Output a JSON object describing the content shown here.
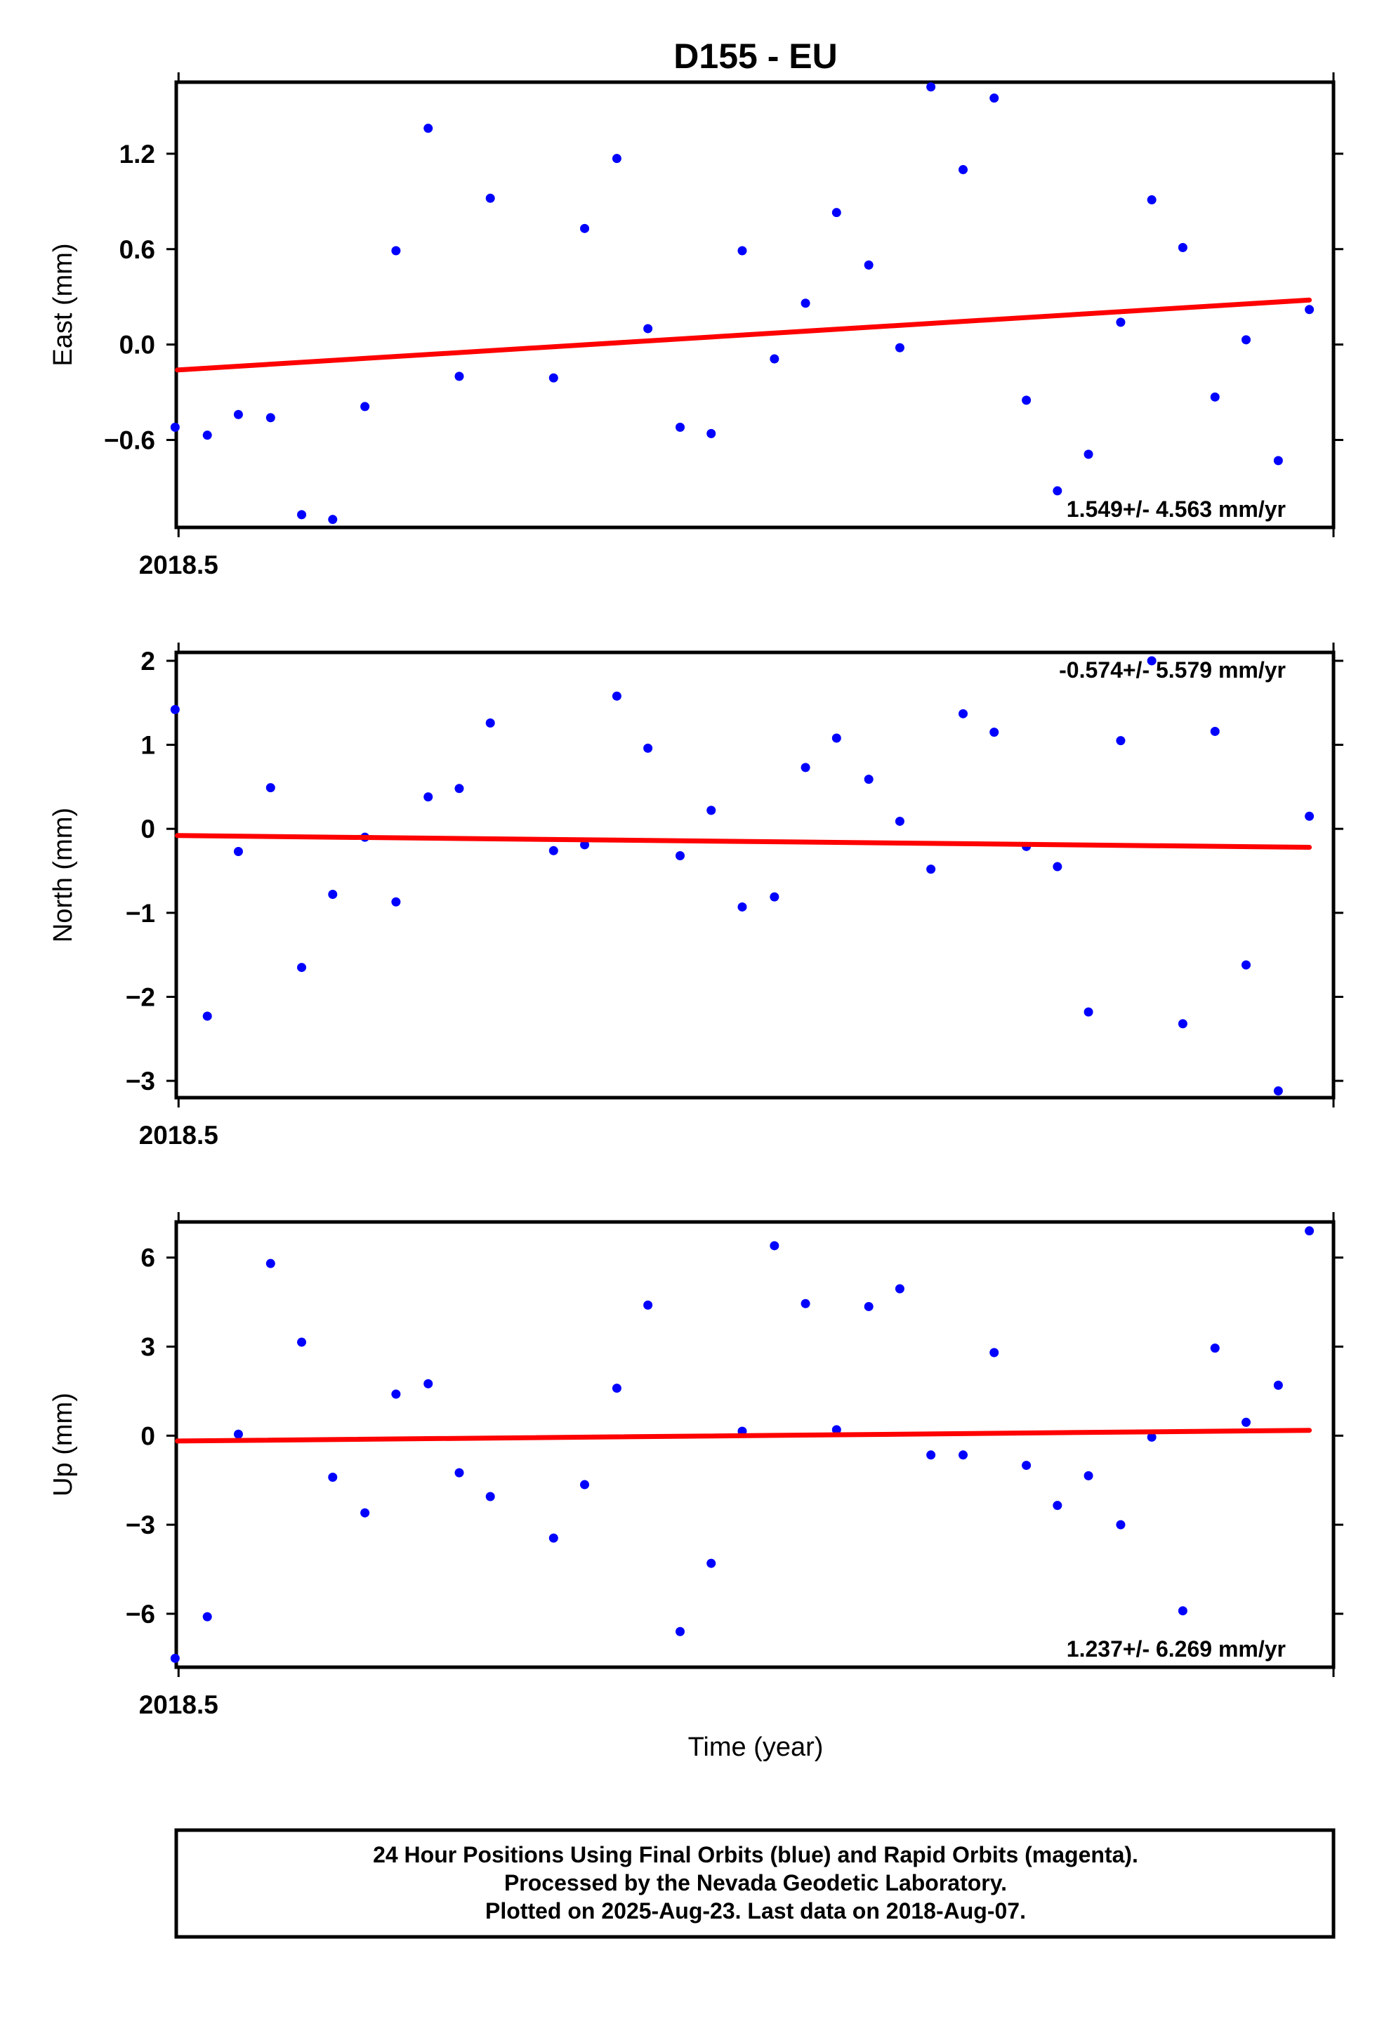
{
  "title": "D155 - EU",
  "colors": {
    "final_orbits": "#0000ff",
    "fit_line": "#ff0000",
    "frame": "#000000"
  },
  "chart_data": [
    {
      "type": "scatter",
      "name": "east",
      "ylabel": "East (mm)",
      "ylim": [
        -1.15,
        1.65
      ],
      "yticks": [
        -0.6,
        0.0,
        0.6,
        1.2
      ],
      "ytick_labels": [
        "−0.6",
        "0.0",
        "0.6",
        "1.2"
      ],
      "xlim": [
        2018.4998,
        2018.6004
      ],
      "xticks": [
        2018.5
      ],
      "xtick_labels": [
        "2018.5"
      ],
      "rate_text": "1.549+/- 4.563 mm/yr",
      "rate_position": "bottom-right",
      "x": [
        2018.4997,
        2018.5025,
        2018.5052,
        2018.508,
        2018.5107,
        2018.5134,
        2018.5162,
        2018.5189,
        2018.5217,
        2018.5244,
        2018.5271,
        2018.5326,
        2018.5353,
        2018.5381,
        2018.5408,
        2018.5436,
        2018.5463,
        2018.549,
        2018.5518,
        2018.5545,
        2018.5572,
        2018.56,
        2018.5627,
        2018.5654,
        2018.5682,
        2018.5709,
        2018.5737,
        2018.5764,
        2018.5791,
        2018.5819,
        2018.5846,
        2018.5873,
        2018.5901,
        2018.5928,
        2018.5956,
        2018.5983
      ],
      "y": [
        -0.52,
        -0.57,
        -0.44,
        -0.46,
        -1.07,
        -1.1,
        -0.39,
        0.59,
        1.36,
        -0.2,
        0.92,
        -0.21,
        0.73,
        1.17,
        0.1,
        -0.52,
        -0.56,
        0.59,
        -0.09,
        0.26,
        0.83,
        0.5,
        -0.02,
        1.62,
        1.1,
        1.55,
        -0.35,
        -0.92,
        -0.69,
        0.14,
        0.91,
        0.61,
        -0.33,
        0.03,
        -0.73,
        0.22
      ],
      "trend": {
        "start": [
          2018.4999,
          -0.16
        ],
        "end": [
          2018.5983,
          0.28
        ]
      }
    },
    {
      "type": "scatter",
      "name": "north",
      "ylabel": "North (mm)",
      "ylim": [
        -3.2,
        2.1
      ],
      "yticks": [
        -3,
        -2,
        -1,
        0,
        1,
        2
      ],
      "ytick_labels": [
        "−3",
        "−2",
        "−1",
        "0",
        "1",
        "2"
      ],
      "xlim": [
        2018.4998,
        2018.6004
      ],
      "xticks": [
        2018.5
      ],
      "xtick_labels": [
        "2018.5"
      ],
      "rate_text": "-0.574+/- 5.579 mm/yr",
      "rate_position": "top-right",
      "x": [
        2018.4997,
        2018.5025,
        2018.5052,
        2018.508,
        2018.5107,
        2018.5134,
        2018.5162,
        2018.5189,
        2018.5217,
        2018.5244,
        2018.5271,
        2018.5326,
        2018.5353,
        2018.5381,
        2018.5408,
        2018.5436,
        2018.5463,
        2018.549,
        2018.5518,
        2018.5545,
        2018.5572,
        2018.56,
        2018.5627,
        2018.5654,
        2018.5682,
        2018.5709,
        2018.5737,
        2018.5764,
        2018.5791,
        2018.5819,
        2018.5846,
        2018.5873,
        2018.5901,
        2018.5928,
        2018.5956,
        2018.5983
      ],
      "y": [
        1.42,
        -2.23,
        -0.27,
        0.49,
        -1.65,
        -0.78,
        -0.1,
        -0.87,
        0.38,
        0.48,
        1.26,
        -0.26,
        -0.19,
        1.58,
        0.96,
        -0.32,
        0.22,
        -0.93,
        -0.81,
        0.73,
        1.08,
        0.59,
        0.09,
        -0.48,
        1.37,
        1.15,
        -0.21,
        -0.45,
        -2.18,
        1.05,
        2.0,
        -2.32,
        1.16,
        -1.62,
        -3.12,
        0.15
      ],
      "trend": {
        "start": [
          2018.4999,
          -0.08
        ],
        "end": [
          2018.5983,
          -0.22
        ]
      }
    },
    {
      "type": "scatter",
      "name": "up",
      "ylabel": "Up (mm)",
      "ylim": [
        -7.8,
        7.2
      ],
      "yticks": [
        -6,
        -3,
        0,
        3,
        6
      ],
      "ytick_labels": [
        "−6",
        "−3",
        "0",
        "3",
        "6"
      ],
      "xlim": [
        2018.4998,
        2018.6004
      ],
      "xticks": [
        2018.5
      ],
      "xtick_labels": [
        "2018.5"
      ],
      "xlabel": "Time (year)",
      "rate_text": "1.237+/- 6.269 mm/yr",
      "rate_position": "bottom-right",
      "x": [
        2018.4997,
        2018.5025,
        2018.5052,
        2018.508,
        2018.5107,
        2018.5134,
        2018.5162,
        2018.5189,
        2018.5217,
        2018.5244,
        2018.5271,
        2018.5326,
        2018.5353,
        2018.5381,
        2018.5408,
        2018.5436,
        2018.5463,
        2018.549,
        2018.5518,
        2018.5545,
        2018.5572,
        2018.56,
        2018.5627,
        2018.5654,
        2018.5682,
        2018.5709,
        2018.5737,
        2018.5764,
        2018.5791,
        2018.5819,
        2018.5846,
        2018.5873,
        2018.5901,
        2018.5928,
        2018.5956,
        2018.5983
      ],
      "y": [
        -7.5,
        -6.1,
        0.05,
        5.8,
        3.15,
        -1.4,
        -2.6,
        1.4,
        1.75,
        -1.25,
        -2.05,
        -3.45,
        -1.65,
        1.6,
        4.4,
        -6.6,
        -4.3,
        0.15,
        6.4,
        4.45,
        0.2,
        4.35,
        4.95,
        -0.65,
        -0.65,
        2.8,
        -1.0,
        -2.35,
        -1.35,
        -3.0,
        -0.05,
        -5.9,
        2.95,
        0.45,
        1.7,
        6.9
      ],
      "trend": {
        "start": [
          2018.4999,
          -0.18
        ],
        "end": [
          2018.5983,
          0.18
        ]
      }
    }
  ],
  "footer": {
    "line1": "24 Hour Positions Using Final Orbits (blue) and Rapid Orbits (magenta).",
    "line2": "Processed by the Nevada Geodetic Laboratory.",
    "line3": "Plotted on 2025-Aug-23. Last data on 2018-Aug-07."
  }
}
